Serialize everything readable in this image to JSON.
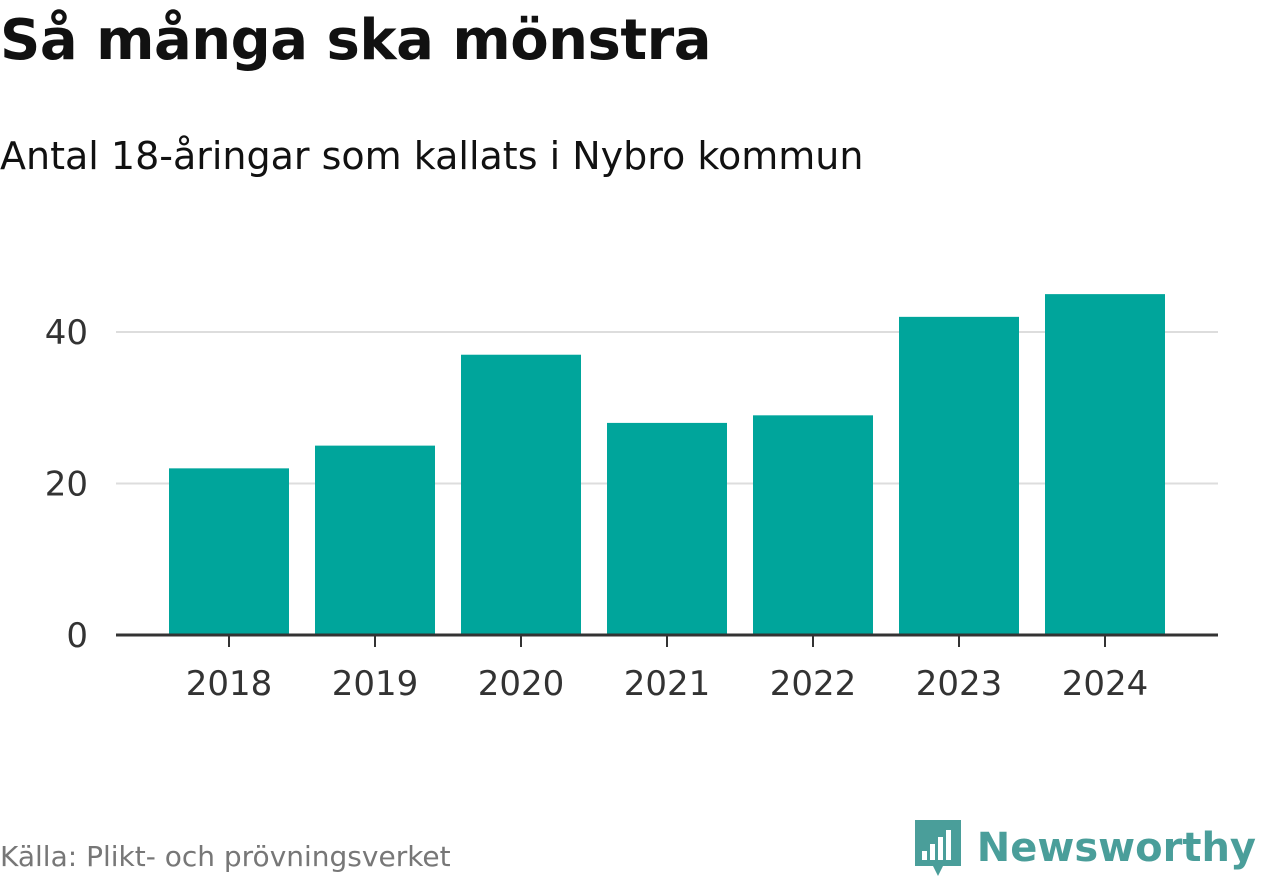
{
  "chart_data": {
    "type": "bar",
    "title": "Så många ska mönstra",
    "subtitle": "Antal 18-åringar som kallats i Nybro kommun",
    "categories": [
      "2018",
      "2019",
      "2020",
      "2021",
      "2022",
      "2023",
      "2024"
    ],
    "values": [
      22,
      25,
      37,
      28,
      29,
      42,
      45
    ],
    "ylim": [
      0,
      45
    ],
    "yticks": [
      0,
      20,
      40
    ],
    "grid": true,
    "bar_color": "#00a59b"
  },
  "footer": {
    "source": "Källa: Plikt- och prövningsverket",
    "brand": "Newsworthy",
    "brand_icon": "bar-chart-speech-bubble-icon",
    "brand_color": "#4a9e9a"
  }
}
